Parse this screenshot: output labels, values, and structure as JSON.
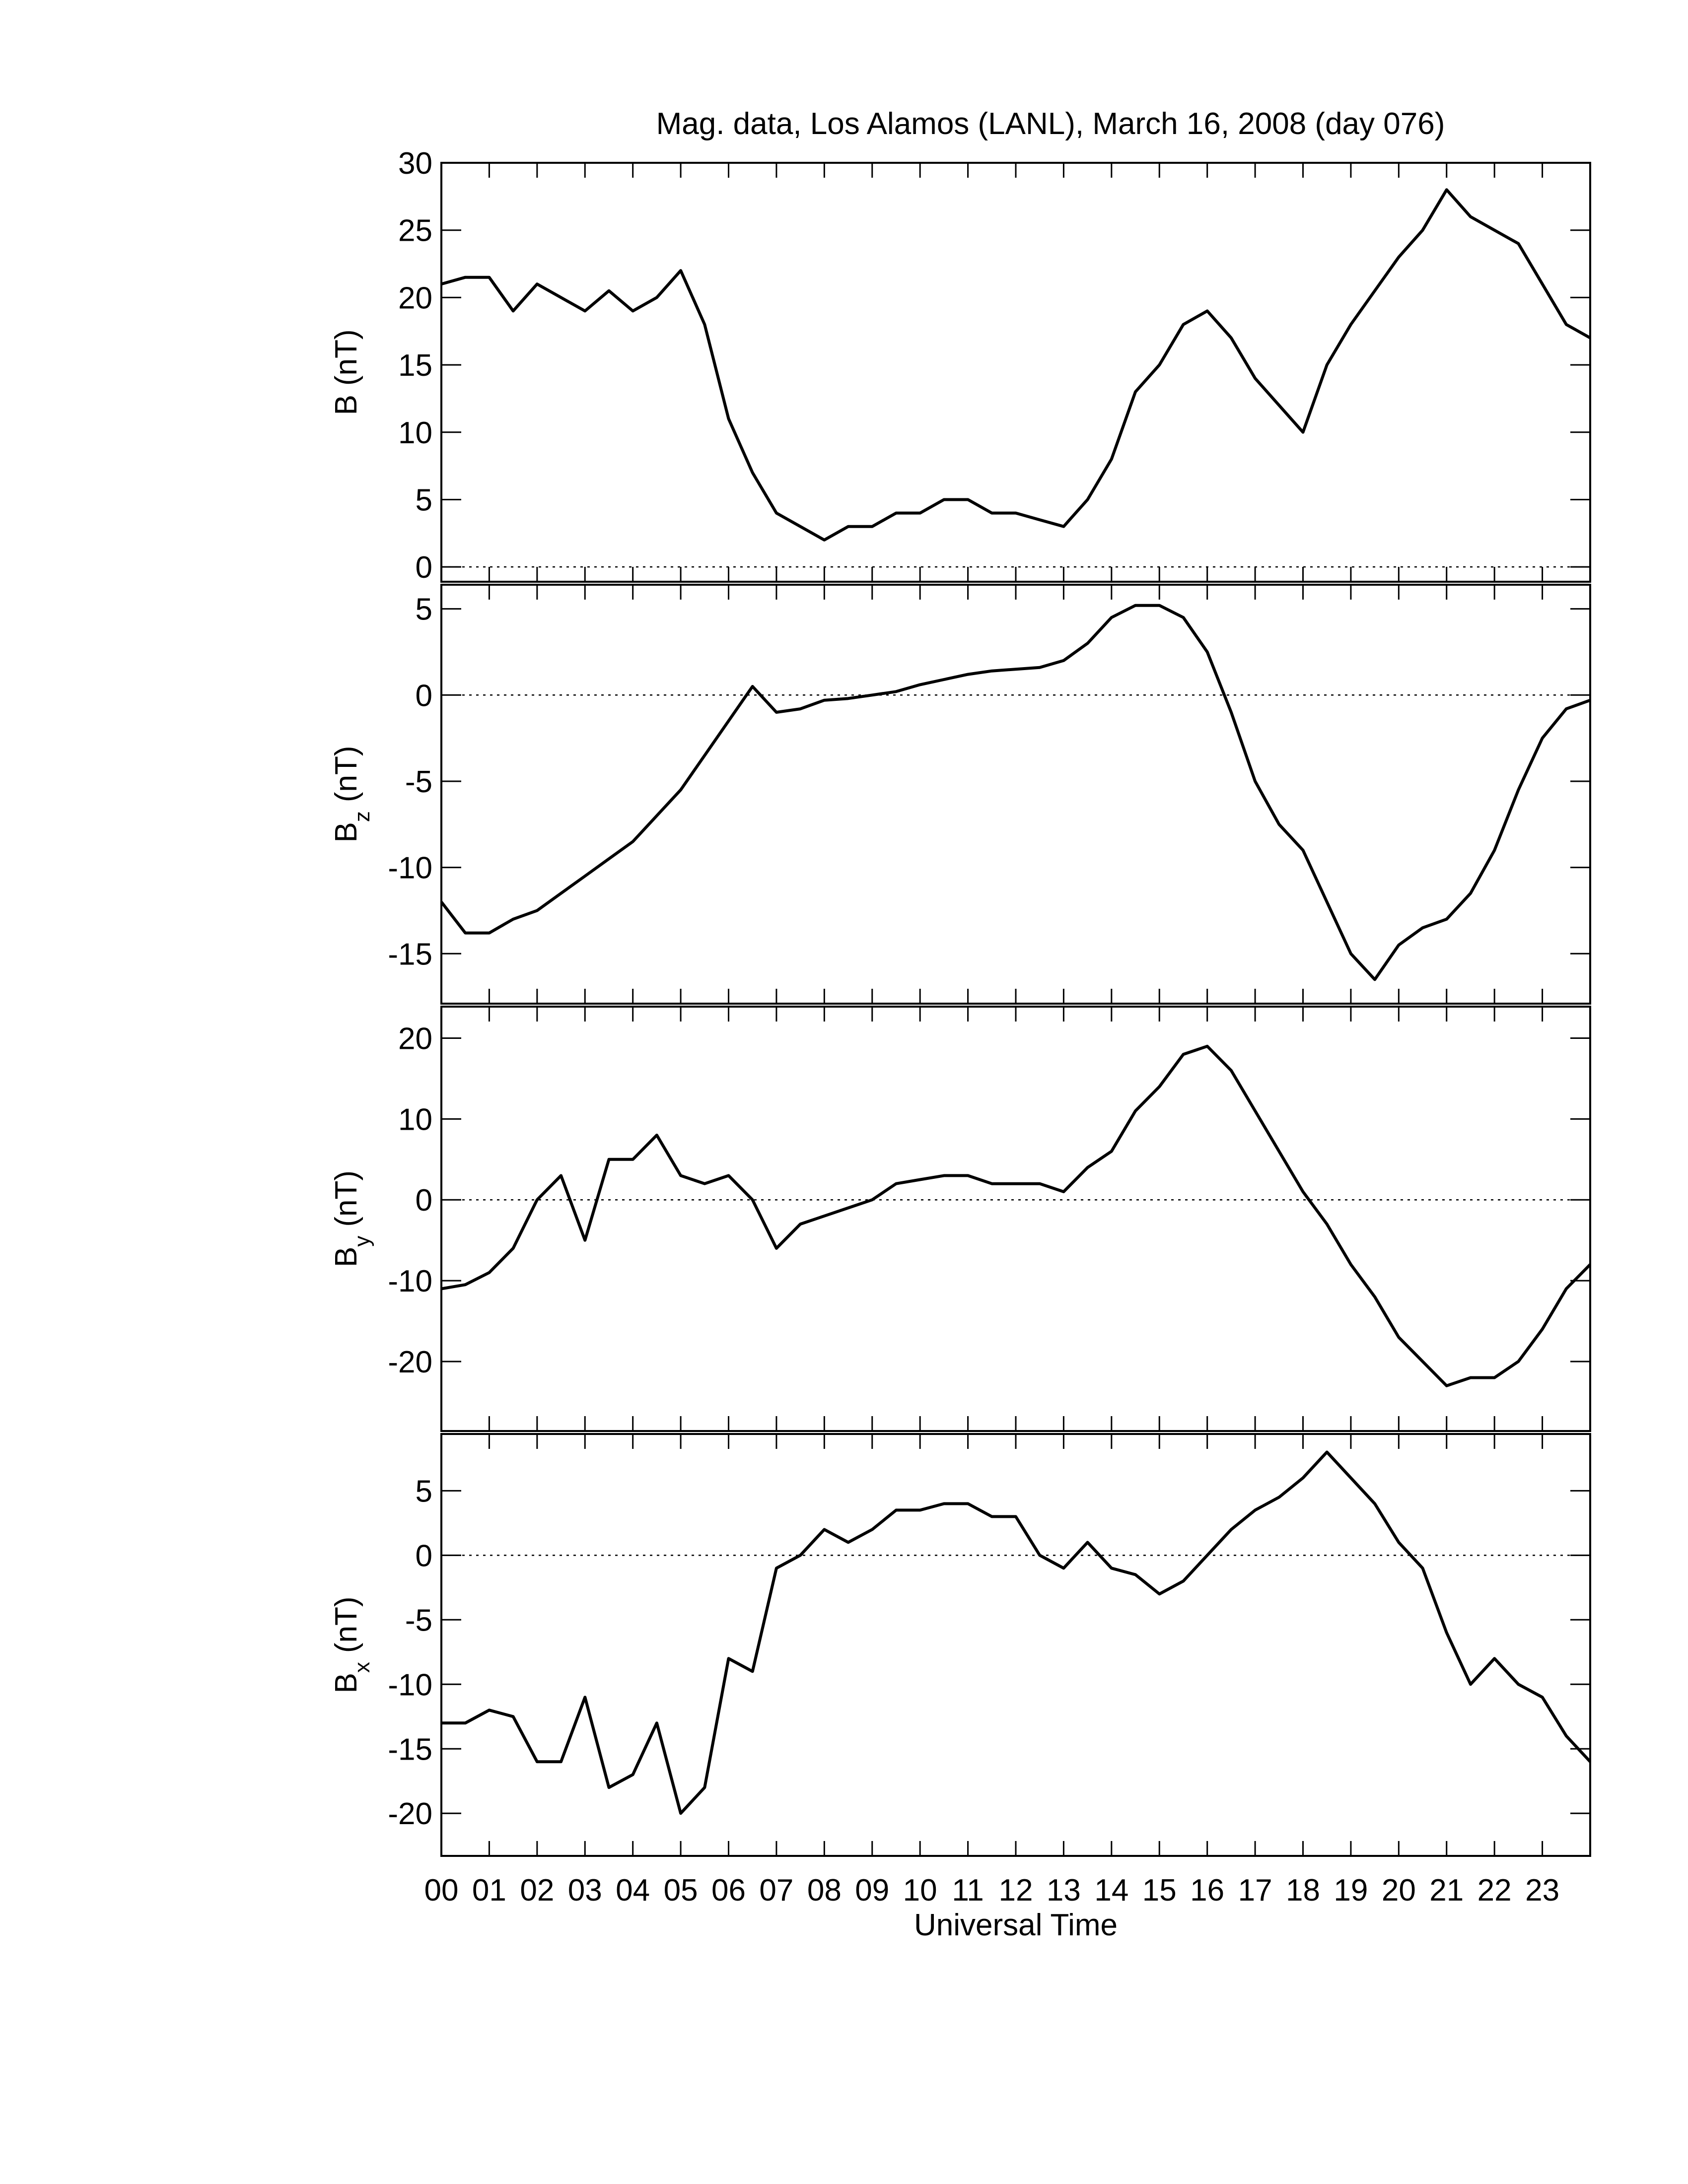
{
  "chart_data": [
    {
      "type": "line",
      "title": "Mag. data, Los Alamos (LANL), March 16, 2008 (day 076)",
      "ylabel": "B",
      "ylabel_unit": "(nT)",
      "color": "#000000",
      "x": [
        0,
        0.5,
        1,
        1.5,
        2,
        2.5,
        3,
        3.5,
        4,
        4.5,
        5,
        5.5,
        6,
        6.5,
        7,
        7.5,
        8,
        8.5,
        9,
        9.5,
        10,
        10.5,
        11,
        11.5,
        12,
        12.5,
        13,
        13.5,
        14,
        14.5,
        15,
        15.5,
        16,
        16.5,
        17,
        17.5,
        18,
        18.5,
        19,
        19.5,
        20,
        20.5,
        21,
        21.5,
        22,
        22.5,
        23,
        23.5,
        24
      ],
      "values": [
        21,
        21.5,
        21.5,
        19,
        21,
        20,
        19,
        20.5,
        19,
        20,
        22,
        18,
        11,
        7,
        4,
        3,
        2,
        3,
        3,
        4,
        4,
        5,
        5,
        4,
        4,
        3.5,
        3,
        5,
        8,
        13,
        15,
        18,
        19,
        17,
        14,
        12,
        10,
        15,
        18,
        20.5,
        23,
        25,
        28,
        26,
        25,
        24,
        21,
        18,
        17
      ],
      "xlim": [
        0,
        24
      ],
      "ylim": [
        -1.1,
        30
      ],
      "yticks": [
        0,
        5,
        10,
        15,
        20,
        25,
        30
      ],
      "reference_line": 0
    },
    {
      "type": "line",
      "ylabel": "B",
      "ylabel_sub": "z",
      "ylabel_unit": "(nT)",
      "color": "#000000",
      "x": [
        0,
        0.5,
        1,
        1.5,
        2,
        2.5,
        3,
        3.5,
        4,
        4.5,
        5,
        5.5,
        6,
        6.5,
        7,
        7.5,
        8,
        8.5,
        9,
        9.5,
        10,
        10.5,
        11,
        11.5,
        12,
        12.5,
        13,
        13.5,
        14,
        14.5,
        15,
        15.5,
        16,
        16.5,
        17,
        17.5,
        18,
        18.5,
        19,
        19.5,
        20,
        20.5,
        21,
        21.5,
        22,
        22.5,
        23,
        23.5,
        24
      ],
      "values": [
        -12,
        -13.8,
        -13.8,
        -13,
        -12.5,
        -11.5,
        -10.5,
        -9.5,
        -8.5,
        -7,
        -5.5,
        -3.5,
        -1.5,
        0.5,
        -1,
        -0.8,
        -0.3,
        -0.2,
        0,
        0.2,
        0.6,
        0.9,
        1.2,
        1.4,
        1.5,
        1.6,
        2,
        3,
        4.5,
        5.2,
        5.2,
        4.5,
        2.5,
        -1,
        -5,
        -7.5,
        -9,
        -12,
        -15,
        -16.5,
        -14.5,
        -13.5,
        -13,
        -11.5,
        -9,
        -5.5,
        -2.5,
        -0.8,
        -0.3
      ],
      "xlim": [
        0,
        24
      ],
      "ylim": [
        -17.9,
        6.4
      ],
      "yticks": [
        -15,
        -10,
        -5,
        0,
        5
      ],
      "reference_line": 0
    },
    {
      "type": "line",
      "ylabel": "B",
      "ylabel_sub": "y",
      "ylabel_unit": "(nT)",
      "color": "#000000",
      "x": [
        0,
        0.5,
        1,
        1.5,
        2,
        2.5,
        3,
        3.5,
        4,
        4.5,
        5,
        5.5,
        6,
        6.5,
        7,
        7.5,
        8,
        8.5,
        9,
        9.5,
        10,
        10.5,
        11,
        11.5,
        12,
        12.5,
        13,
        13.5,
        14,
        14.5,
        15,
        15.5,
        16,
        16.5,
        17,
        17.5,
        18,
        18.5,
        19,
        19.5,
        20,
        20.5,
        21,
        21.5,
        22,
        22.5,
        23,
        23.5,
        24
      ],
      "values": [
        -11,
        -10.5,
        -9,
        -6,
        0,
        3,
        -5,
        5,
        5,
        8,
        3,
        2,
        3,
        0,
        -6,
        -3,
        -2,
        -1,
        0,
        2,
        2.5,
        3,
        3,
        2,
        2,
        2,
        1,
        4,
        6,
        11,
        14,
        18,
        19,
        16,
        11,
        6,
        1,
        -3,
        -8,
        -12,
        -17,
        -20,
        -23,
        -22,
        -22,
        -20,
        -16,
        -11,
        -8
      ],
      "xlim": [
        0,
        24
      ],
      "ylim": [
        -28.6,
        23.9
      ],
      "yticks": [
        -20,
        -10,
        0,
        10,
        20
      ],
      "reference_line": 0
    },
    {
      "type": "line",
      "ylabel": "B",
      "ylabel_sub": "x",
      "ylabel_unit": "(nT)",
      "xlabel": "Universal Time",
      "color": "#000000",
      "x": [
        0,
        0.5,
        1,
        1.5,
        2,
        2.5,
        3,
        3.5,
        4,
        4.5,
        5,
        5.5,
        6,
        6.5,
        7,
        7.5,
        8,
        8.5,
        9,
        9.5,
        10,
        10.5,
        11,
        11.5,
        12,
        12.5,
        13,
        13.5,
        14,
        14.5,
        15,
        15.5,
        16,
        16.5,
        17,
        17.5,
        18,
        18.5,
        19,
        19.5,
        20,
        20.5,
        21,
        21.5,
        22,
        22.5,
        23,
        23.5,
        24
      ],
      "values": [
        -13,
        -13,
        -12,
        -12.5,
        -16,
        -16,
        -11,
        -18,
        -17,
        -13,
        -20,
        -18,
        -8,
        -9,
        -1,
        0,
        2,
        1,
        2,
        3.5,
        3.5,
        4,
        4,
        3,
        3,
        0,
        -1,
        1,
        -1,
        -1.5,
        -3,
        -2,
        0,
        2,
        3.5,
        4.5,
        6,
        8,
        6,
        4,
        1,
        -1,
        -6,
        -10,
        -8,
        -10,
        -11,
        -14,
        -16
      ],
      "xlim": [
        0,
        24
      ],
      "ylim": [
        -23.3,
        9.4
      ],
      "yticks": [
        -20,
        -15,
        -10,
        -5,
        0,
        5
      ],
      "reference_line": 0,
      "xticks": [
        {
          "value": 0,
          "label": "00"
        },
        {
          "value": 1,
          "label": "01"
        },
        {
          "value": 2,
          "label": "02"
        },
        {
          "value": 3,
          "label": "03"
        },
        {
          "value": 4,
          "label": "04"
        },
        {
          "value": 5,
          "label": "05"
        },
        {
          "value": 6,
          "label": "06"
        },
        {
          "value": 7,
          "label": "07"
        },
        {
          "value": 8,
          "label": "08"
        },
        {
          "value": 9,
          "label": "09"
        },
        10,
        11,
        12,
        13,
        14,
        15,
        16,
        17,
        18,
        19,
        20,
        21,
        22,
        23
      ]
    }
  ]
}
